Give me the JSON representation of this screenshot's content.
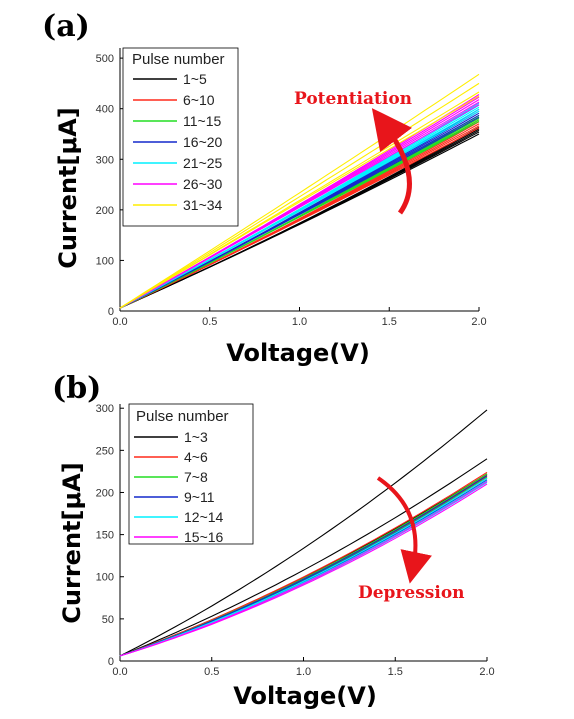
{
  "panels": [
    {
      "label": "(a)"
    },
    {
      "label": "(b)"
    }
  ],
  "chart_data": [
    {
      "type": "line",
      "panel": "(a)",
      "xlabel": "Voltage(V)",
      "ylabel": "Current[μA]",
      "xlim": [
        0.0,
        2.0
      ],
      "ylim": [
        0,
        520
      ],
      "xticks": [
        0.0,
        0.5,
        1.0,
        1.5,
        2.0
      ],
      "xtick_labels": [
        "0.0",
        "0.5",
        "1.0",
        "1.5",
        "2.0"
      ],
      "yticks": [
        0,
        100,
        200,
        300,
        400,
        500
      ],
      "ytick_labels": [
        "0",
        "100",
        "200",
        "300",
        "400",
        "500"
      ],
      "legend_title": "Pulse number",
      "legend_position": "top-left",
      "annotation": {
        "text": "Potentiation",
        "arrow": "up",
        "color": "#e8151b"
      },
      "series": [
        {
          "name": "1~5",
          "color": "#000000",
          "count": 5,
          "y_at_2V": [
            350,
            354,
            357,
            360,
            363
          ],
          "curvature": 0.08
        },
        {
          "name": "6~10",
          "color": "#ff2a1a",
          "count": 5,
          "y_at_2V": [
            362,
            366,
            370,
            374,
            378
          ],
          "curvature": 0.06
        },
        {
          "name": "11~15",
          "color": "#22dd22",
          "count": 5,
          "y_at_2V": [
            375,
            378,
            381,
            384,
            387
          ],
          "curvature": 0.05
        },
        {
          "name": "16~20",
          "color": "#1428cc",
          "count": 5,
          "y_at_2V": [
            383,
            387,
            391,
            395,
            399
          ],
          "curvature": 0.04
        },
        {
          "name": "21~25",
          "color": "#00f0ff",
          "count": 5,
          "y_at_2V": [
            395,
            399,
            403,
            407,
            411
          ],
          "curvature": 0.03
        },
        {
          "name": "26~30",
          "color": "#ff00ff",
          "count": 5,
          "y_at_2V": [
            408,
            413,
            418,
            423,
            428
          ],
          "curvature": 0.02
        },
        {
          "name": "31~34",
          "color": "#ffee00",
          "count": 4,
          "y_at_2V": [
            425,
            433,
            450,
            468
          ],
          "curvature": 0.0
        }
      ]
    },
    {
      "type": "line",
      "panel": "(b)",
      "xlabel": "Voltage(V)",
      "ylabel": "Current[μA]",
      "xlim": [
        0.0,
        2.0
      ],
      "ylim": [
        0,
        305
      ],
      "xticks": [
        0.0,
        0.5,
        1.0,
        1.5,
        2.0
      ],
      "xtick_labels": [
        "0.0",
        "0.5",
        "1.0",
        "1.5",
        "2.0"
      ],
      "yticks": [
        0,
        50,
        100,
        150,
        200,
        250,
        300
      ],
      "ytick_labels": [
        "0",
        "50",
        "100",
        "150",
        "200",
        "250",
        "300"
      ],
      "legend_title": "Pulse number",
      "legend_position": "top-left",
      "annotation": {
        "text": "Depression",
        "arrow": "down",
        "color": "#e8151b"
      },
      "series": [
        {
          "name": "1~3",
          "color": "#000000",
          "count": 3,
          "y_at_2V": [
            298,
            240,
            222
          ],
          "curvature": 0.25
        },
        {
          "name": "4~6",
          "color": "#ff2a1a",
          "count": 3,
          "y_at_2V": [
            224,
            221,
            219
          ],
          "curvature": 0.28
        },
        {
          "name": "7~8",
          "color": "#22dd22",
          "count": 2,
          "y_at_2V": [
            222,
            218
          ],
          "curvature": 0.3
        },
        {
          "name": "9~11",
          "color": "#1428cc",
          "count": 3,
          "y_at_2V": [
            220,
            217,
            215
          ],
          "curvature": 0.3
        },
        {
          "name": "12~14",
          "color": "#00f0ff",
          "count": 3,
          "y_at_2V": [
            217,
            214,
            212
          ],
          "curvature": 0.32
        },
        {
          "name": "15~16",
          "color": "#ff00ff",
          "count": 2,
          "y_at_2V": [
            213,
            210
          ],
          "curvature": 0.34
        }
      ]
    }
  ]
}
